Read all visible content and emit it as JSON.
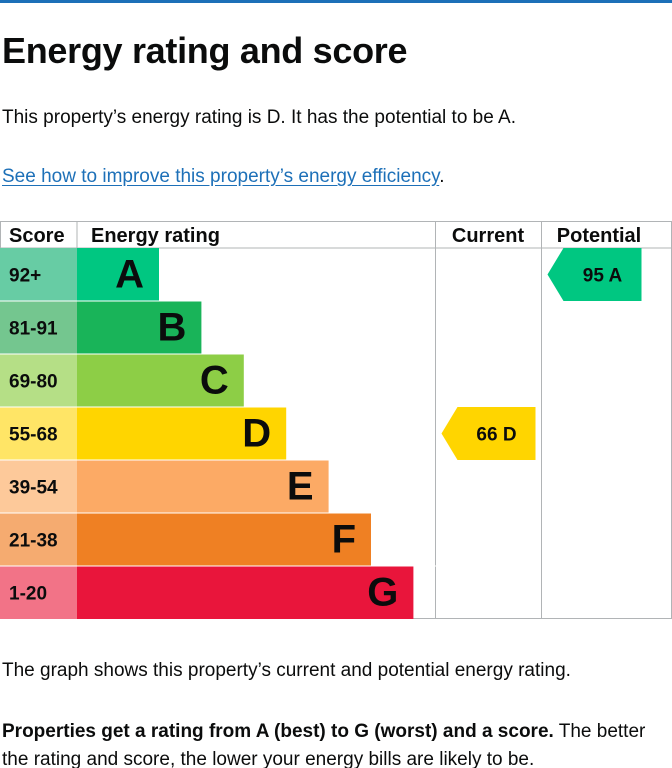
{
  "page": {
    "title": "Energy rating and score",
    "intro": "This property’s energy rating is D. It has the potential to be A.",
    "link_text": "See how to improve this property’s energy efficiency",
    "link_suffix": ".",
    "graph_caption": "The graph shows this property’s current and potential energy rating.",
    "explanation_bold": "Properties get a rating from A (best) to G (worst) and a score.",
    "explanation_rest": " The better the rating and score, the lower your energy bills are likely to be."
  },
  "chart_data": {
    "type": "table",
    "headers": {
      "score": "Score",
      "energy_rating": "Energy rating",
      "current": "Current",
      "potential": "Potential"
    },
    "bands": [
      {
        "letter": "A",
        "range": "92+",
        "color": "#00c781",
        "score_color": "#67cca4"
      },
      {
        "letter": "B",
        "range": "81-91",
        "color": "#19b459",
        "score_color": "#74c68f"
      },
      {
        "letter": "C",
        "range": "69-80",
        "color": "#8dce46",
        "score_color": "#b5df86"
      },
      {
        "letter": "D",
        "range": "55-68",
        "color": "#ffd500",
        "score_color": "#ffe566"
      },
      {
        "letter": "E",
        "range": "39-54",
        "color": "#fcaa65",
        "score_color": "#fdc99a"
      },
      {
        "letter": "F",
        "range": "21-38",
        "color": "#ef8023",
        "score_color": "#f5ab70"
      },
      {
        "letter": "G",
        "range": "1-20",
        "color": "#e9153b",
        "score_color": "#f27387"
      }
    ],
    "current": {
      "score": 66,
      "band": "D",
      "label": "66 D"
    },
    "potential": {
      "score": 95,
      "band": "A",
      "label": "95 A"
    }
  }
}
